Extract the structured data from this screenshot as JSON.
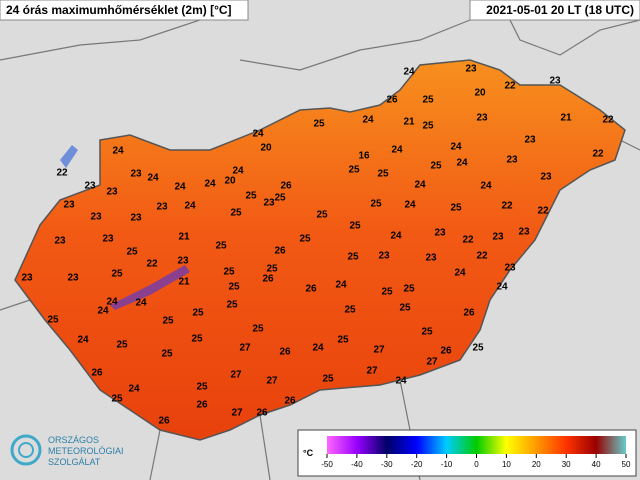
{
  "header": {
    "title": "24 órás maximumhőmérséklet (2m) [°C]",
    "timestamp": "2021-05-01 20 LT (18 UTC)"
  },
  "stations": {
    "values": [
      24,
      23,
      26,
      25,
      20,
      22,
      23,
      25,
      24,
      21,
      25,
      23,
      21,
      22,
      24,
      20,
      22,
      24,
      24,
      23,
      22,
      16,
      25,
      25,
      24,
      25,
      24,
      23,
      23,
      23,
      23,
      24,
      24,
      24,
      24,
      20,
      26,
      24,
      24,
      23,
      25,
      25,
      23,
      23,
      23,
      23,
      23,
      24,
      25,
      25,
      25,
      25,
      24,
      25,
      22,
      22,
      23,
      23,
      25,
      22,
      21,
      25,
      26,
      25,
      24,
      23,
      22,
      23,
      23,
      23,
      23,
      25,
      23,
      25,
      25,
      26,
      25,
      23,
      23,
      22,
      23,
      24,
      21,
      26,
      24,
      25,
      25,
      24,
      24,
      24,
      24,
      25,
      25,
      25,
      25,
      25,
      25,
      25,
      26,
      25,
      25,
      24,
      25,
      25,
      27,
      26,
      24,
      25,
      27,
      26,
      25,
      26,
      25,
      27,
      27,
      25,
      27,
      27,
      24,
      24,
      25,
      25,
      26,
      27,
      26,
      26,
      26
    ]
  },
  "legend": {
    "unit": "°C",
    "ticks": [
      -50,
      -40,
      -30,
      -20,
      -10,
      0,
      10,
      20,
      30,
      40,
      50
    ]
  },
  "logo": {
    "line1": "ORSZÁGOS",
    "line2": "METEOROLÓGIAI",
    "line3": "SZOLGÁLAT"
  }
}
